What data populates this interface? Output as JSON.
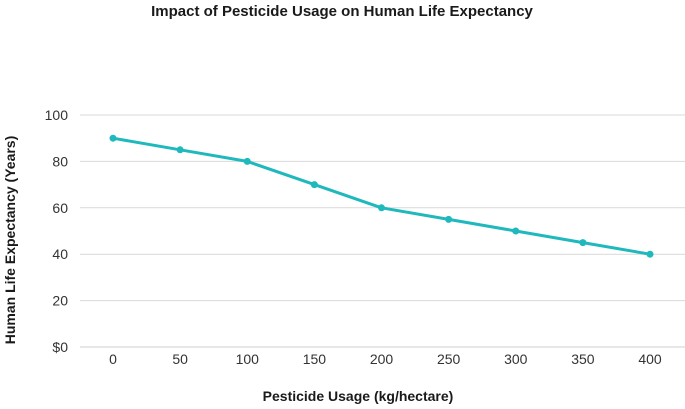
{
  "chart_data": {
    "type": "line",
    "title": "Impact of Pesticide Usage on Human Life Expectancy",
    "xlabel": "Pesticide Usage (kg/hectare)",
    "ylabel": "Human Life Expectancy (Years)",
    "x": [
      0,
      50,
      100,
      150,
      200,
      250,
      300,
      350,
      400
    ],
    "series": [
      {
        "values": [
          90,
          85,
          80,
          70,
          60,
          55,
          50,
          45,
          40
        ]
      }
    ],
    "ylim": [
      0,
      100
    ],
    "y_ticks": [
      0,
      20,
      40,
      60,
      80,
      100
    ],
    "y_tick_labels": [
      "$0",
      "20",
      "40",
      "60",
      "80",
      "100"
    ],
    "x_tick_labels": [
      "0",
      "50",
      "100",
      "150",
      "200",
      "250",
      "300",
      "350",
      "400"
    ],
    "grid": "horizontal",
    "line_color": "#1fb8bd",
    "marker": "circle"
  }
}
